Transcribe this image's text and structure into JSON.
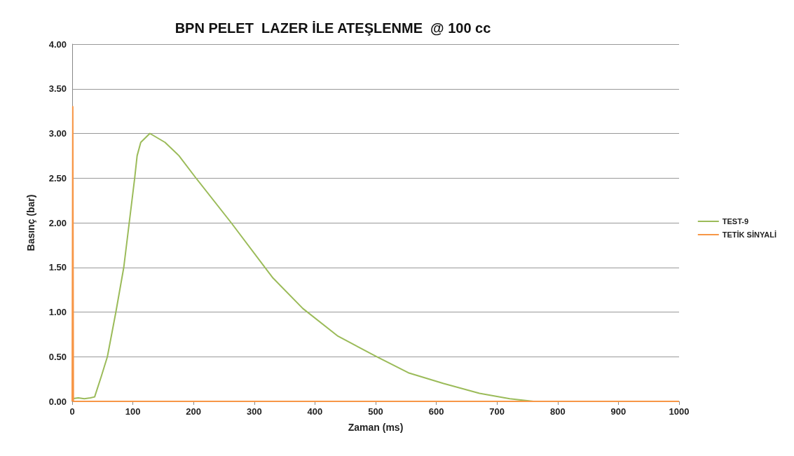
{
  "chart_data": {
    "type": "line",
    "title": "BPN PELET  LAZER İLE ATEŞLENME  @ 100 cc",
    "xlabel": "Zaman (ms)",
    "ylabel": "Basınç (bar)",
    "xlim": [
      0,
      1000
    ],
    "xticks": [
      0,
      100,
      200,
      300,
      400,
      500,
      600,
      700,
      800,
      900,
      1000
    ],
    "ylim": [
      0,
      4
    ],
    "yticks": [
      {
        "value": 0,
        "label": "0.00"
      },
      {
        "value": 0.5,
        "label": "0.50"
      },
      {
        "value": 1,
        "label": "1.00"
      },
      {
        "value": 1.5,
        "label": "1.50"
      },
      {
        "value": 2,
        "label": "2.00"
      },
      {
        "value": 2.5,
        "label": "2.50"
      },
      {
        "value": 3,
        "label": "3.00"
      },
      {
        "value": 3.5,
        "label": "3.50"
      },
      {
        "value": 4,
        "label": "4.00"
      }
    ],
    "grid": "y",
    "legend": "right",
    "marker": "none",
    "line_style": "solid",
    "series": [
      {
        "name": "TEST-9",
        "color": "#9bbb59",
        "x": [
          0,
          10,
          20,
          30,
          37,
          48,
          58,
          72,
          85,
          94,
          103,
          107,
          113,
          128,
          153,
          176,
          204,
          262,
          322,
          331,
          380,
          438,
          496,
          554,
          612,
          671,
          721,
          760,
          1000
        ],
        "values": [
          0.03,
          0.04,
          0.03,
          0.04,
          0.05,
          0.28,
          0.5,
          1.0,
          1.5,
          2.0,
          2.5,
          2.75,
          2.9,
          3.0,
          2.9,
          2.75,
          2.5,
          2.0,
          1.46,
          1.38,
          1.04,
          0.73,
          0.52,
          0.32,
          0.2,
          0.09,
          0.03,
          0,
          0
        ]
      },
      {
        "name": "TETİK SİNYALİ",
        "color": "#f79646",
        "x": [
          0,
          1,
          2,
          1000
        ],
        "values": [
          0,
          3.3,
          0,
          0
        ]
      }
    ]
  }
}
